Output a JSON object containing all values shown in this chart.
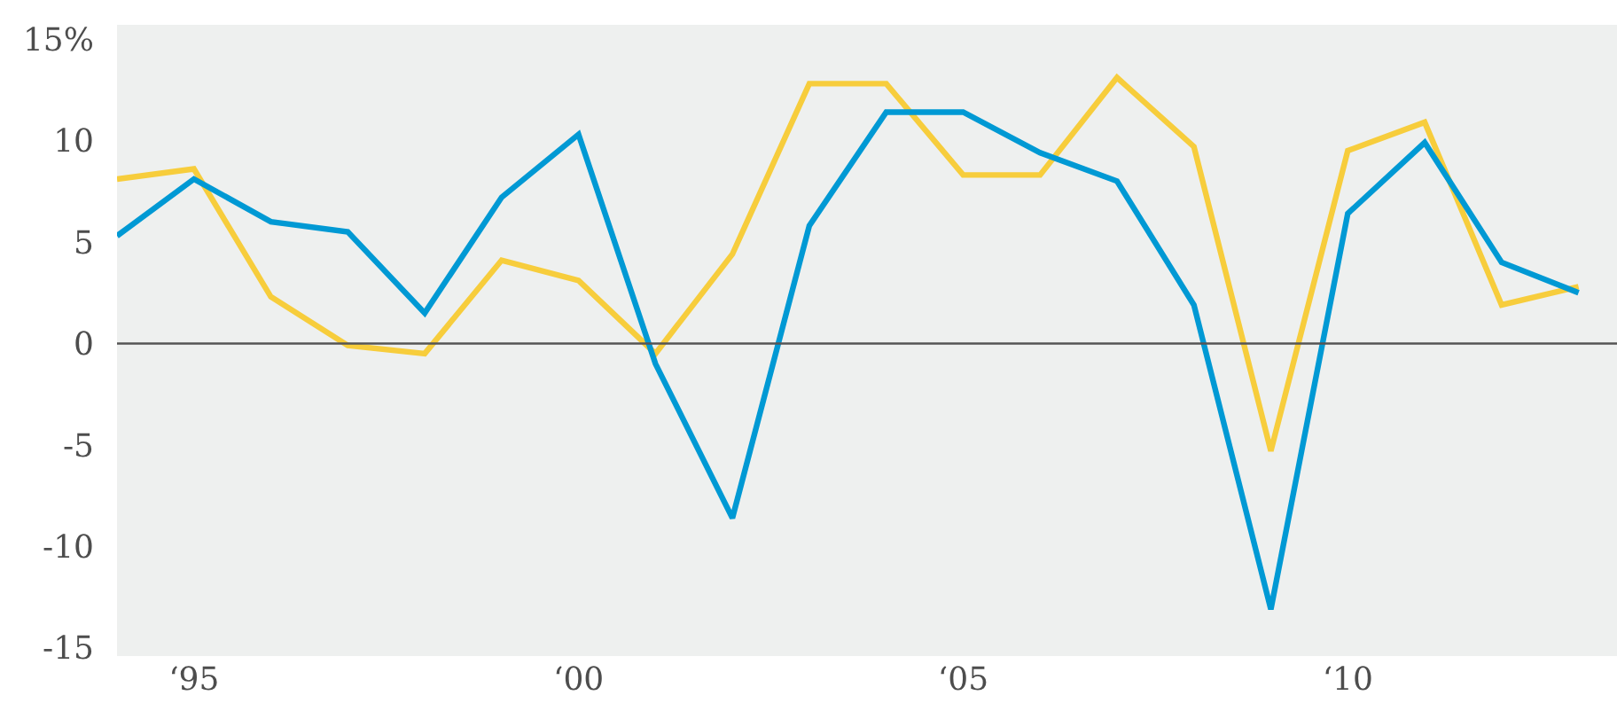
{
  "chart_data": {
    "type": "line",
    "categories": [
      null,
      "‘95",
      null,
      null,
      null,
      null,
      "‘00",
      null,
      null,
      null,
      null,
      "‘05",
      null,
      null,
      null,
      null,
      "‘10",
      null,
      null,
      null
    ],
    "series": [
      {
        "color": "#f7cd3c",
        "values": [
          8.1,
          8.6,
          2.3,
          -0.1,
          -0.5,
          4.1,
          3.1,
          -0.5,
          4.4,
          12.8,
          12.8,
          8.3,
          8.3,
          13.1,
          9.7,
          -5.3,
          9.5,
          10.9,
          1.9,
          2.8
        ]
      },
      {
        "color": "#0099d4",
        "values": [
          5.3,
          8.1,
          6.0,
          5.5,
          1.5,
          7.2,
          10.3,
          -1.0,
          -8.6,
          5.8,
          11.4,
          11.4,
          9.4,
          8.0,
          1.9,
          -13.1,
          6.4,
          9.9,
          4.0,
          2.5
        ]
      }
    ],
    "ylim": [
      -15.4,
      15.7
    ],
    "yticks": [
      {
        "value": 15,
        "label": "15%"
      },
      10,
      5,
      0,
      -5,
      -10,
      -15
    ],
    "ref_lines": [
      {
        "axis": "y",
        "value": 0,
        "color": "#555555"
      }
    ],
    "grid": false,
    "marker": "none",
    "line_style": "solid"
  }
}
